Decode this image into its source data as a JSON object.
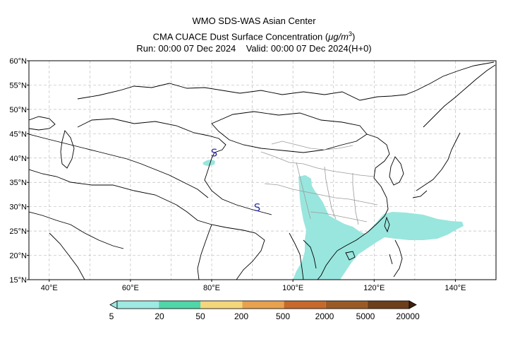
{
  "header": {
    "line1": "WMO SDS-WAS Asian Center",
    "line2_prefix": "CMA CUACE Dust Surface Concentration (",
    "line2_unit_mu": "μ",
    "line2_unit_g": "g/m",
    "line2_unit_sup": "3",
    "line2_suffix": ")",
    "line3": "Run: 00:00 07 Dec 2024    Valid: 00:00 07 Dec 2024(H+0)"
  },
  "map": {
    "lon_range": [
      35,
      150
    ],
    "lat_range": [
      15,
      60
    ],
    "lat_ticks": [
      "60°N",
      "55°N",
      "50°N",
      "45°N",
      "40°N",
      "35°N",
      "30°N",
      "25°N",
      "20°N",
      "15°N"
    ],
    "lon_ticks": [
      "40°E",
      "60°E",
      "80°E",
      "100°E",
      "120°E",
      "140°E"
    ],
    "grid": true,
    "dust_fill_color": "#99e6de",
    "markers": [
      {
        "label": "S",
        "lon": 80.6,
        "lat": 40.3,
        "color": "#3030a0"
      },
      {
        "label": "S",
        "lon": 91.2,
        "lat": 29.1,
        "color": "#3030a0"
      }
    ]
  },
  "colorbar": {
    "levels": [
      "5",
      "20",
      "50",
      "200",
      "500",
      "2000",
      "5000",
      "20000"
    ],
    "colors": [
      "#9ee9e2",
      "#4fd6a9",
      "#f4d67b",
      "#e8a14e",
      "#c7692a",
      "#9b5a25",
      "#6e3f1b",
      "#3b2110"
    ]
  }
}
